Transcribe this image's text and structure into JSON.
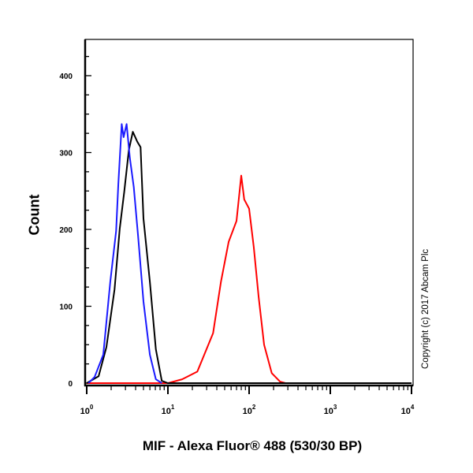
{
  "chart_data": {
    "type": "line",
    "title": "",
    "xlabel": "MIF - Alexa Fluor® 488 (530/30 BP)",
    "ylabel": "Count",
    "x_scale": "log",
    "xlim": [
      1,
      10000
    ],
    "ylim": [
      0,
      447
    ],
    "x_tick_labels": [
      {
        "base": "10",
        "exp": "0"
      },
      {
        "base": "10",
        "exp": "1"
      },
      {
        "base": "10",
        "exp": "2"
      },
      {
        "base": "10",
        "exp": "3"
      },
      {
        "base": "10",
        "exp": "4"
      }
    ],
    "y_ticks": [
      0,
      100,
      200,
      300,
      400
    ],
    "grid": false,
    "annotation": "Copyright (c) 2017 Abcam Plc",
    "series": [
      {
        "color": "#ff0000",
        "points": [
          [
            1,
            0
          ],
          [
            10,
            0
          ],
          [
            15,
            5
          ],
          [
            23,
            15
          ],
          [
            36,
            65
          ],
          [
            45,
            132
          ],
          [
            56,
            184
          ],
          [
            70,
            211
          ],
          [
            80,
            270
          ],
          [
            87,
            239
          ],
          [
            100,
            227
          ],
          [
            114,
            177
          ],
          [
            131,
            112
          ],
          [
            153,
            50
          ],
          [
            190,
            13
          ],
          [
            240,
            2
          ],
          [
            280,
            0
          ],
          [
            10000,
            0
          ]
        ]
      },
      {
        "color": "#000000",
        "points": [
          [
            1,
            0
          ],
          [
            1.4,
            9
          ],
          [
            1.75,
            47
          ],
          [
            2.2,
            122
          ],
          [
            2.55,
            201
          ],
          [
            2.9,
            249
          ],
          [
            3.3,
            303
          ],
          [
            3.7,
            327
          ],
          [
            4.2,
            314
          ],
          [
            4.6,
            307
          ],
          [
            5.0,
            214
          ],
          [
            6.0,
            132
          ],
          [
            7.1,
            44
          ],
          [
            8.4,
            3
          ],
          [
            10,
            0
          ],
          [
            10000,
            0
          ]
        ]
      },
      {
        "color": "#1a1aff",
        "points": [
          [
            1.05,
            0
          ],
          [
            1.25,
            8
          ],
          [
            1.6,
            37
          ],
          [
            1.95,
            132
          ],
          [
            2.3,
            198
          ],
          [
            2.45,
            259
          ],
          [
            2.7,
            337
          ],
          [
            2.85,
            320
          ],
          [
            3.1,
            337
          ],
          [
            3.4,
            293
          ],
          [
            3.8,
            255
          ],
          [
            4.3,
            191
          ],
          [
            5.0,
            106
          ],
          [
            6.0,
            37
          ],
          [
            7.1,
            5
          ],
          [
            8.4,
            0
          ]
        ]
      }
    ]
  }
}
